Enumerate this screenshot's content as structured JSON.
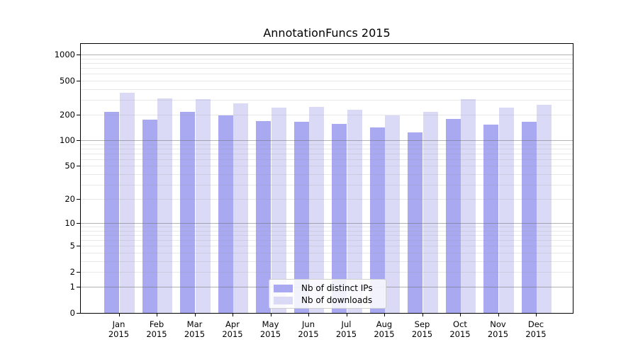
{
  "window": {
    "title": "AnnotationFuncs 2015"
  },
  "chart_data": {
    "type": "bar",
    "title": "AnnotationFuncs 2015",
    "categories": [
      "Jan",
      "Feb",
      "Mar",
      "Apr",
      "May",
      "Jun",
      "Jul",
      "Aug",
      "Sep",
      "Oct",
      "Nov",
      "Dec"
    ],
    "x_year": "2015",
    "series": [
      {
        "name": "Nb of distinct IPs",
        "color": "#a9a9f2",
        "values": [
          216,
          176,
          217,
          196,
          169,
          167,
          156,
          143,
          125,
          178,
          155,
          166
        ]
      },
      {
        "name": "Nb of downloads",
        "color": "#dadaf7",
        "values": [
          365,
          311,
          307,
          271,
          245,
          249,
          229,
          199,
          216,
          304,
          245,
          261
        ]
      }
    ],
    "xlabel": "",
    "ylabel": "",
    "y_scale": "symlog",
    "y_ticks": [
      0,
      1,
      2,
      5,
      10,
      20,
      50,
      100,
      200,
      500,
      1000
    ],
    "y_major_gridlines": [
      1,
      10,
      100,
      1000
    ],
    "ylim": [
      0,
      1390
    ],
    "grid": true,
    "legend_position": "lower center",
    "colors": {
      "axis": "#000000",
      "major_grid": "#b5b5b5",
      "minor_grid": "#e8e8e8",
      "background": "#ffffff"
    }
  }
}
